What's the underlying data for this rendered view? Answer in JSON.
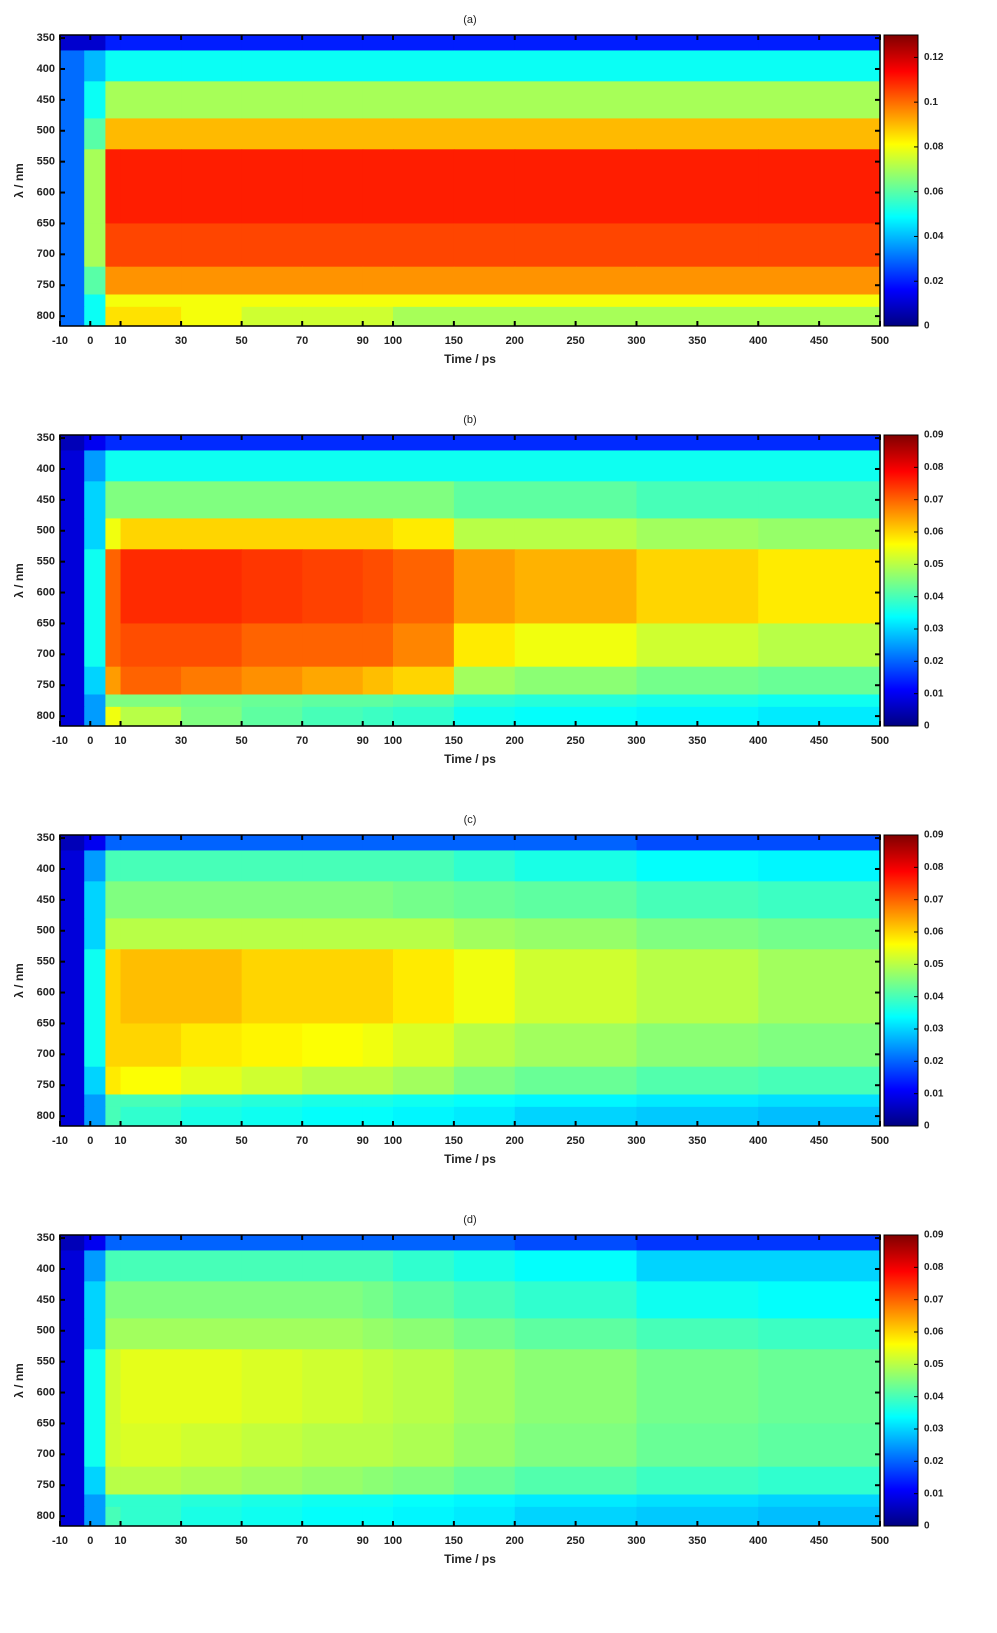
{
  "chart_data": [
    {
      "type": "heatmap",
      "title": "(a)",
      "xlabel": "Time / ps",
      "ylabel": "λ / nm",
      "colormap": "jet",
      "y_reversed": true,
      "xbreak": 100,
      "xlim": [
        -10,
        500
      ],
      "ylim": [
        345,
        816
      ],
      "clim": [
        0,
        0.13
      ],
      "xticks": [
        -10,
        0,
        10,
        30,
        50,
        70,
        90,
        100,
        150,
        200,
        250,
        300,
        350,
        400,
        450,
        500
      ],
      "yticks": [
        350,
        400,
        450,
        500,
        550,
        600,
        650,
        700,
        750,
        800
      ],
      "cticks": [
        0,
        0.02,
        0.04,
        0.06,
        0.08,
        0.1,
        0.12
      ],
      "xbins": [
        -10,
        -2,
        5,
        10,
        30,
        50,
        70,
        90,
        100,
        150,
        200,
        300,
        400,
        500
      ],
      "ybins": [
        345,
        370,
        420,
        480,
        530,
        650,
        720,
        765,
        785,
        816
      ],
      "z": [
        [
          0.01,
          0.01,
          0.02,
          0.02,
          0.02,
          0.02,
          0.02,
          0.02,
          0.02,
          0.02,
          0.02,
          0.02,
          0.02
        ],
        [
          0.03,
          0.04,
          0.05,
          0.05,
          0.05,
          0.05,
          0.05,
          0.05,
          0.05,
          0.05,
          0.05,
          0.05,
          0.05
        ],
        [
          0.03,
          0.05,
          0.07,
          0.07,
          0.07,
          0.07,
          0.07,
          0.07,
          0.07,
          0.07,
          0.07,
          0.07,
          0.07
        ],
        [
          0.03,
          0.06,
          0.09,
          0.09,
          0.09,
          0.09,
          0.09,
          0.09,
          0.09,
          0.09,
          0.09,
          0.09,
          0.09
        ],
        [
          0.03,
          0.07,
          0.11,
          0.11,
          0.11,
          0.11,
          0.11,
          0.11,
          0.11,
          0.11,
          0.11,
          0.11,
          0.11
        ],
        [
          0.03,
          0.07,
          0.105,
          0.105,
          0.105,
          0.105,
          0.105,
          0.105,
          0.105,
          0.105,
          0.105,
          0.105,
          0.105
        ],
        [
          0.03,
          0.06,
          0.095,
          0.095,
          0.095,
          0.095,
          0.095,
          0.095,
          0.095,
          0.095,
          0.095,
          0.095,
          0.095
        ],
        [
          0.03,
          0.05,
          0.08,
          0.08,
          0.08,
          0.08,
          0.08,
          0.08,
          0.08,
          0.08,
          0.08,
          0.08,
          0.08
        ],
        [
          0.03,
          0.05,
          0.085,
          0.085,
          0.08,
          0.075,
          0.075,
          0.075,
          0.07,
          0.07,
          0.07,
          0.07,
          0.07
        ]
      ]
    },
    {
      "type": "heatmap",
      "title": "(b)",
      "xlabel": "Time / ps",
      "ylabel": "λ / nm",
      "colormap": "jet",
      "y_reversed": true,
      "xbreak": 100,
      "xlim": [
        -10,
        500
      ],
      "ylim": [
        345,
        816
      ],
      "clim": [
        0,
        0.09
      ],
      "xticks": [
        -10,
        0,
        10,
        30,
        50,
        70,
        90,
        100,
        150,
        200,
        250,
        300,
        350,
        400,
        450,
        500
      ],
      "yticks": [
        350,
        400,
        450,
        500,
        550,
        600,
        650,
        700,
        750,
        800
      ],
      "cticks": [
        0,
        0.01,
        0.02,
        0.03,
        0.04,
        0.05,
        0.06,
        0.07,
        0.08,
        0.09
      ],
      "xbins": [
        -10,
        -2,
        5,
        10,
        30,
        50,
        70,
        90,
        100,
        150,
        200,
        300,
        400,
        500
      ],
      "ybins": [
        345,
        370,
        420,
        480,
        530,
        650,
        720,
        765,
        785,
        816
      ],
      "z": [
        [
          0.005,
          0.01,
          0.015,
          0.015,
          0.015,
          0.015,
          0.015,
          0.015,
          0.015,
          0.015,
          0.015,
          0.015,
          0.015
        ],
        [
          0.008,
          0.025,
          0.035,
          0.035,
          0.035,
          0.035,
          0.035,
          0.035,
          0.035,
          0.035,
          0.035,
          0.035,
          0.035
        ],
        [
          0.008,
          0.03,
          0.045,
          0.045,
          0.045,
          0.045,
          0.045,
          0.045,
          0.045,
          0.042,
          0.042,
          0.04,
          0.04
        ],
        [
          0.008,
          0.03,
          0.055,
          0.06,
          0.06,
          0.06,
          0.06,
          0.06,
          0.058,
          0.05,
          0.05,
          0.048,
          0.047
        ],
        [
          0.008,
          0.035,
          0.07,
          0.075,
          0.075,
          0.074,
          0.073,
          0.072,
          0.07,
          0.065,
          0.063,
          0.06,
          0.058
        ],
        [
          0.008,
          0.035,
          0.07,
          0.072,
          0.072,
          0.07,
          0.07,
          0.07,
          0.067,
          0.058,
          0.055,
          0.052,
          0.05
        ],
        [
          0.008,
          0.03,
          0.065,
          0.07,
          0.068,
          0.066,
          0.064,
          0.062,
          0.06,
          0.048,
          0.046,
          0.044,
          0.043
        ],
        [
          0.008,
          0.025,
          0.045,
          0.045,
          0.044,
          0.043,
          0.042,
          0.042,
          0.041,
          0.038,
          0.037,
          0.036,
          0.035
        ],
        [
          0.008,
          0.025,
          0.055,
          0.05,
          0.045,
          0.042,
          0.04,
          0.039,
          0.038,
          0.035,
          0.034,
          0.033,
          0.032
        ]
      ]
    },
    {
      "type": "heatmap",
      "title": "(c)",
      "xlabel": "Time / ps",
      "ylabel": "λ / nm",
      "colormap": "jet",
      "y_reversed": true,
      "xbreak": 100,
      "xlim": [
        -10,
        500
      ],
      "ylim": [
        345,
        816
      ],
      "clim": [
        0,
        0.09
      ],
      "xticks": [
        -10,
        0,
        10,
        30,
        50,
        70,
        90,
        100,
        150,
        200,
        250,
        300,
        350,
        400,
        450,
        500
      ],
      "yticks": [
        350,
        400,
        450,
        500,
        550,
        600,
        650,
        700,
        750,
        800
      ],
      "cticks": [
        0,
        0.01,
        0.02,
        0.03,
        0.04,
        0.05,
        0.06,
        0.07,
        0.08,
        0.09
      ],
      "xbins": [
        -10,
        -2,
        5,
        10,
        30,
        50,
        70,
        90,
        100,
        150,
        200,
        300,
        400,
        500
      ],
      "ybins": [
        345,
        370,
        420,
        480,
        530,
        650,
        720,
        765,
        785,
        816
      ],
      "z": [
        [
          0.005,
          0.01,
          0.02,
          0.02,
          0.02,
          0.02,
          0.02,
          0.02,
          0.02,
          0.02,
          0.02,
          0.018,
          0.018
        ],
        [
          0.008,
          0.025,
          0.04,
          0.04,
          0.04,
          0.04,
          0.04,
          0.04,
          0.04,
          0.038,
          0.036,
          0.034,
          0.033
        ],
        [
          0.008,
          0.03,
          0.045,
          0.045,
          0.045,
          0.045,
          0.045,
          0.045,
          0.044,
          0.043,
          0.042,
          0.04,
          0.039
        ],
        [
          0.008,
          0.03,
          0.05,
          0.05,
          0.05,
          0.05,
          0.05,
          0.05,
          0.05,
          0.048,
          0.047,
          0.045,
          0.044
        ],
        [
          0.008,
          0.035,
          0.06,
          0.062,
          0.062,
          0.06,
          0.06,
          0.06,
          0.058,
          0.055,
          0.052,
          0.05,
          0.048
        ],
        [
          0.008,
          0.035,
          0.06,
          0.06,
          0.058,
          0.057,
          0.056,
          0.055,
          0.053,
          0.05,
          0.048,
          0.046,
          0.045
        ],
        [
          0.008,
          0.03,
          0.058,
          0.056,
          0.054,
          0.052,
          0.05,
          0.05,
          0.048,
          0.045,
          0.043,
          0.041,
          0.04
        ],
        [
          0.008,
          0.025,
          0.04,
          0.04,
          0.038,
          0.037,
          0.036,
          0.036,
          0.035,
          0.034,
          0.033,
          0.032,
          0.031
        ],
        [
          0.008,
          0.025,
          0.04,
          0.038,
          0.036,
          0.035,
          0.034,
          0.034,
          0.033,
          0.032,
          0.03,
          0.029,
          0.028
        ]
      ]
    },
    {
      "type": "heatmap",
      "title": "(d)",
      "xlabel": "Time / ps",
      "ylabel": "λ / nm",
      "colormap": "jet",
      "y_reversed": true,
      "xbreak": 100,
      "xlim": [
        -10,
        500
      ],
      "ylim": [
        345,
        816
      ],
      "clim": [
        0,
        0.09
      ],
      "xticks": [
        -10,
        0,
        10,
        30,
        50,
        70,
        90,
        100,
        150,
        200,
        250,
        300,
        350,
        400,
        450,
        500
      ],
      "yticks": [
        350,
        400,
        450,
        500,
        550,
        600,
        650,
        700,
        750,
        800
      ],
      "cticks": [
        0,
        0.01,
        0.02,
        0.03,
        0.04,
        0.05,
        0.06,
        0.07,
        0.08,
        0.09
      ],
      "xbins": [
        -10,
        -2,
        5,
        10,
        30,
        50,
        70,
        90,
        100,
        150,
        200,
        300,
        400,
        500
      ],
      "ybins": [
        345,
        370,
        420,
        480,
        530,
        650,
        720,
        765,
        785,
        816
      ],
      "z": [
        [
          0.005,
          0.01,
          0.02,
          0.02,
          0.02,
          0.02,
          0.02,
          0.02,
          0.02,
          0.02,
          0.018,
          0.016,
          0.016
        ],
        [
          0.008,
          0.025,
          0.04,
          0.04,
          0.04,
          0.04,
          0.04,
          0.04,
          0.038,
          0.036,
          0.034,
          0.03,
          0.03
        ],
        [
          0.008,
          0.03,
          0.045,
          0.045,
          0.045,
          0.045,
          0.045,
          0.044,
          0.042,
          0.04,
          0.038,
          0.035,
          0.034
        ],
        [
          0.008,
          0.03,
          0.048,
          0.048,
          0.048,
          0.048,
          0.048,
          0.047,
          0.046,
          0.044,
          0.042,
          0.04,
          0.039
        ],
        [
          0.008,
          0.035,
          0.052,
          0.054,
          0.054,
          0.053,
          0.052,
          0.051,
          0.05,
          0.048,
          0.046,
          0.044,
          0.043
        ],
        [
          0.008,
          0.035,
          0.052,
          0.053,
          0.052,
          0.051,
          0.05,
          0.05,
          0.049,
          0.047,
          0.045,
          0.043,
          0.042
        ],
        [
          0.008,
          0.03,
          0.05,
          0.05,
          0.049,
          0.048,
          0.047,
          0.046,
          0.045,
          0.043,
          0.041,
          0.039,
          0.038
        ],
        [
          0.008,
          0.025,
          0.038,
          0.038,
          0.037,
          0.036,
          0.035,
          0.035,
          0.034,
          0.033,
          0.032,
          0.031,
          0.03
        ],
        [
          0.008,
          0.025,
          0.04,
          0.038,
          0.036,
          0.035,
          0.034,
          0.034,
          0.033,
          0.032,
          0.03,
          0.029,
          0.028
        ]
      ]
    }
  ]
}
